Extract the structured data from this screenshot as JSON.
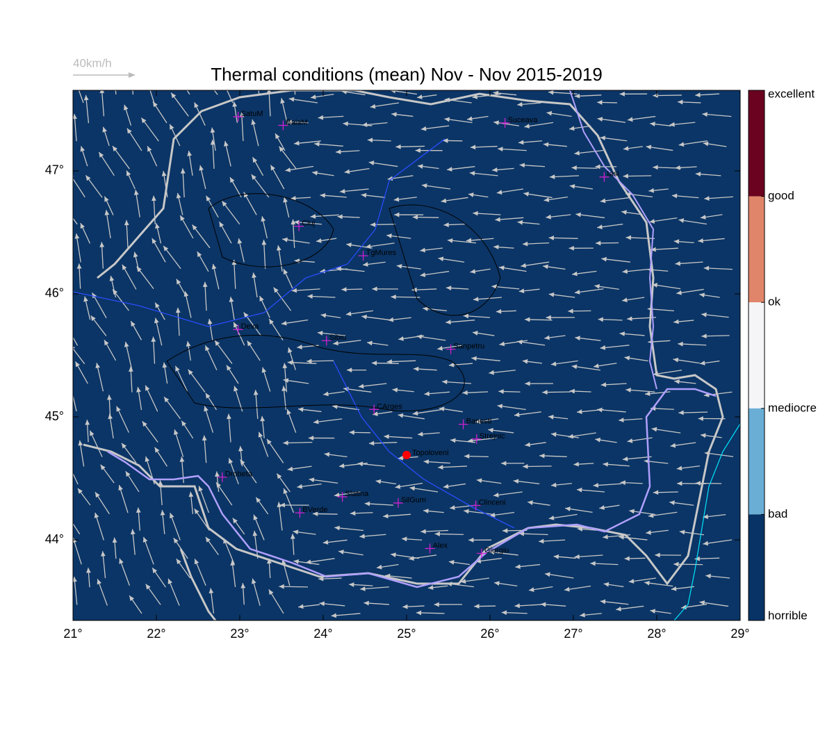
{
  "title": "Thermal conditions (mean) Nov - Nov  2015-2019",
  "wind_scale": "40km/h",
  "map": {
    "background": "#0b3566",
    "xlim": [
      21,
      29
    ],
    "ylim": [
      43.345,
      47.655
    ],
    "xticks": [
      {
        "value": 21,
        "label": "21°"
      },
      {
        "value": 22,
        "label": "22°"
      },
      {
        "value": 23,
        "label": "23°"
      },
      {
        "value": 24,
        "label": "24°"
      },
      {
        "value": 25,
        "label": "25°"
      },
      {
        "value": 26,
        "label": "26°"
      },
      {
        "value": 27,
        "label": "27°"
      },
      {
        "value": 28,
        "label": "28°"
      },
      {
        "value": 29,
        "label": "29°"
      }
    ],
    "yticks": [
      {
        "value": 44,
        "label": "44°"
      },
      {
        "value": 45,
        "label": "45°"
      },
      {
        "value": 46,
        "label": "46°"
      },
      {
        "value": 47,
        "label": "47°"
      }
    ],
    "station_color": "#d020d0",
    "stations": [
      {
        "name": "SatuM",
        "lon": 22.98,
        "lat": 47.44
      },
      {
        "name": "BaiaM",
        "lon": 23.52,
        "lat": 47.37
      },
      {
        "name": "Suceava",
        "lon": 26.18,
        "lat": 47.39
      },
      {
        "name": "Iasi",
        "lon": 27.37,
        "lat": 46.95
      },
      {
        "name": "Cluj",
        "lon": 23.71,
        "lat": 46.55
      },
      {
        "name": "TgMures",
        "lon": 24.48,
        "lat": 46.31
      },
      {
        "name": "Deva",
        "lon": 22.98,
        "lat": 45.71
      },
      {
        "name": "Sibiu",
        "lon": 24.04,
        "lat": 45.62
      },
      {
        "name": "Sanpetru",
        "lon": 25.53,
        "lat": 45.55
      },
      {
        "name": "CArges",
        "lon": 24.61,
        "lat": 45.06
      },
      {
        "name": "Banesti",
        "lon": 25.68,
        "lat": 44.94
      },
      {
        "name": "Strejnic",
        "lon": 25.84,
        "lat": 44.82
      },
      {
        "name": "Drobeta",
        "lon": 22.79,
        "lat": 44.51
      },
      {
        "name": "Slatina",
        "lon": 24.23,
        "lat": 44.35
      },
      {
        "name": "SilGum",
        "lon": 24.9,
        "lat": 44.3
      },
      {
        "name": "Clinceni",
        "lon": 25.83,
        "lat": 44.28
      },
      {
        "name": "BVerde",
        "lon": 23.72,
        "lat": 44.22
      },
      {
        "name": "Alex",
        "lon": 25.28,
        "lat": 43.93
      },
      {
        "name": "Giurgiu",
        "lon": 25.9,
        "lat": 43.89
      }
    ],
    "site": {
      "name": "Topoloveni",
      "lon": 25.0,
      "lat": 44.69,
      "color": "#ff0000"
    }
  },
  "colorbar": {
    "labels": [
      "excellent",
      "good",
      "ok",
      "mediocre",
      "bad",
      "horrible"
    ],
    "colors": [
      "#6a0220",
      "#e0856a",
      "#f5f5f7",
      "#6aaed6",
      "#083366"
    ]
  }
}
